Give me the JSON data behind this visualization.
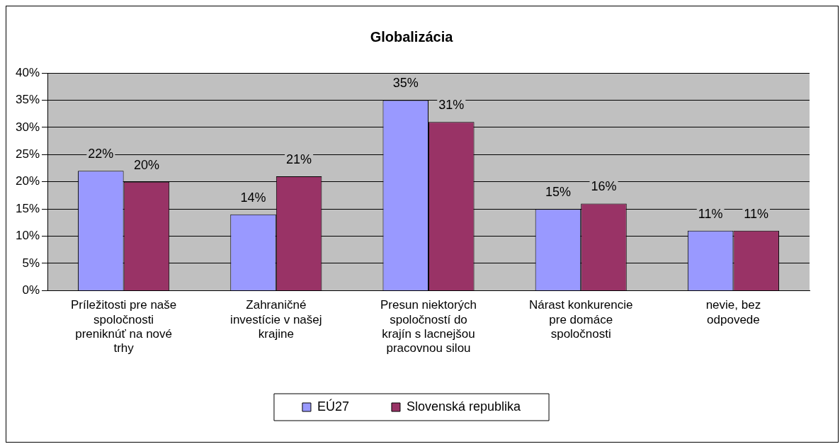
{
  "chart_data": {
    "type": "bar",
    "title": "Globalizácia",
    "categories": [
      "Príležitosti pre naše spoločnosti preniknúť na nové trhy",
      "Zahraničné investície v našej krajine",
      "Presun niektorých spoločností do krajín s lacnejšou pracovnou silou",
      "Nárast konkurencie pre domáce spoločnosti",
      "nevie, bez odpovede"
    ],
    "series": [
      {
        "name": "EÚ27",
        "color": "#9999ff",
        "values": [
          22,
          14,
          35,
          15,
          11
        ],
        "value_labels": [
          "22%",
          "14%",
          "35%",
          "15%",
          "11%"
        ]
      },
      {
        "name": "Slovenská republika",
        "color": "#993366",
        "values": [
          20,
          21,
          31,
          16,
          11
        ],
        "value_labels": [
          "20%",
          "21%",
          "31%",
          "16%",
          "11%"
        ]
      }
    ],
    "ylim": [
      0,
      40
    ],
    "yticks": [
      {
        "value": 0,
        "label": "0%"
      },
      {
        "value": 5,
        "label": "5%"
      },
      {
        "value": 10,
        "label": "10%"
      },
      {
        "value": 15,
        "label": "15%"
      },
      {
        "value": 20,
        "label": "20%"
      },
      {
        "value": 25,
        "label": "25%"
      },
      {
        "value": 30,
        "label": "30%"
      },
      {
        "value": 35,
        "label": "35%"
      },
      {
        "value": 40,
        "label": "40%"
      }
    ],
    "grid": "y",
    "legend": "bottom"
  }
}
